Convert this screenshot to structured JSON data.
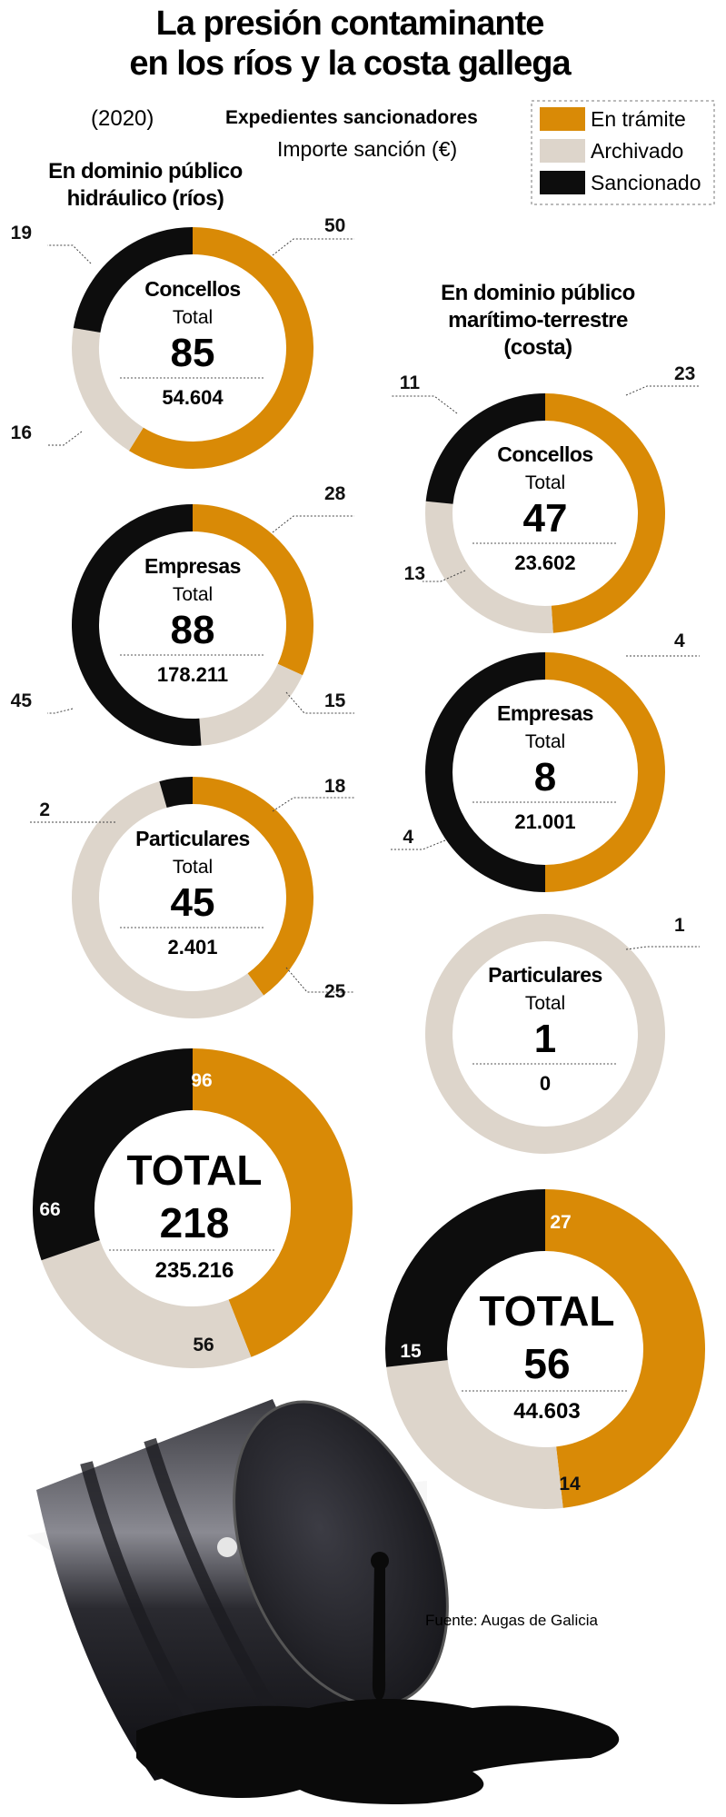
{
  "header": {
    "title_line1": "La presión contaminante",
    "title_line2": "en los ríos y la costa gallega",
    "year": "(2020)",
    "legend_title": "Expedientes sancionadores",
    "legend_subtitle": "Importe sanción (€)"
  },
  "legend": [
    {
      "label": "En trámite",
      "color": "#D98A06"
    },
    {
      "label": "Archivado",
      "color": "#DDD5CB"
    },
    {
      "label": "Sancionado",
      "color": "#0D0D0D"
    }
  ],
  "sections": {
    "rios_line1": "En dominio público",
    "rios_line2": "hidráulico (ríos)",
    "costa_line1": "En dominio público",
    "costa_line2": "marítimo-terrestre",
    "costa_line3": "(costa)"
  },
  "total_label": "Total",
  "source": "Fuente: Augas de Galicia",
  "chart_data": [
    {
      "type": "pie",
      "group": "ríos",
      "name": "Concellos",
      "total": "85",
      "importe": "54.604",
      "categories": [
        "En trámite",
        "Archivado",
        "Sancionado"
      ],
      "values": [
        50,
        16,
        19
      ],
      "value_labels": [
        "50",
        "16",
        "19"
      ]
    },
    {
      "type": "pie",
      "group": "ríos",
      "name": "Empresas",
      "total": "88",
      "importe": "178.211",
      "categories": [
        "En trámite",
        "Archivado",
        "Sancionado"
      ],
      "values": [
        28,
        15,
        45
      ],
      "value_labels": [
        "28",
        "15",
        "45"
      ]
    },
    {
      "type": "pie",
      "group": "ríos",
      "name": "Particulares",
      "total": "45",
      "importe": "2.401",
      "categories": [
        "En trámite",
        "Archivado",
        "Sancionado"
      ],
      "values": [
        18,
        25,
        2
      ],
      "value_labels": [
        "18",
        "25",
        "2"
      ]
    },
    {
      "type": "pie",
      "group": "ríos",
      "name": "TOTAL",
      "total": "218",
      "importe": "235.216",
      "categories": [
        "En trámite",
        "Archivado",
        "Sancionado"
      ],
      "values": [
        96,
        56,
        66
      ],
      "value_labels": [
        "96",
        "56",
        "66"
      ]
    },
    {
      "type": "pie",
      "group": "costa",
      "name": "Concellos",
      "total": "47",
      "importe": "23.602",
      "categories": [
        "En trámite",
        "Archivado",
        "Sancionado"
      ],
      "values": [
        23,
        13,
        11
      ],
      "value_labels": [
        "23",
        "13",
        "11"
      ]
    },
    {
      "type": "pie",
      "group": "costa",
      "name": "Empresas",
      "total": "8",
      "importe": "21.001",
      "categories": [
        "En trámite",
        "Archivado",
        "Sancionado"
      ],
      "values": [
        4,
        0,
        4
      ],
      "value_labels": [
        "4",
        "",
        "4"
      ]
    },
    {
      "type": "pie",
      "group": "costa",
      "name": "Particulares",
      "total": "1",
      "importe": "0",
      "categories": [
        "En trámite",
        "Archivado",
        "Sancionado"
      ],
      "values": [
        0,
        1,
        0
      ],
      "value_labels": [
        "",
        "1",
        ""
      ]
    },
    {
      "type": "pie",
      "group": "costa",
      "name": "TOTAL",
      "total": "56",
      "importe": "44.603",
      "categories": [
        "En trámite",
        "Archivado",
        "Sancionado"
      ],
      "values": [
        27,
        14,
        15
      ],
      "value_labels": [
        "27",
        "14",
        "15"
      ]
    }
  ]
}
